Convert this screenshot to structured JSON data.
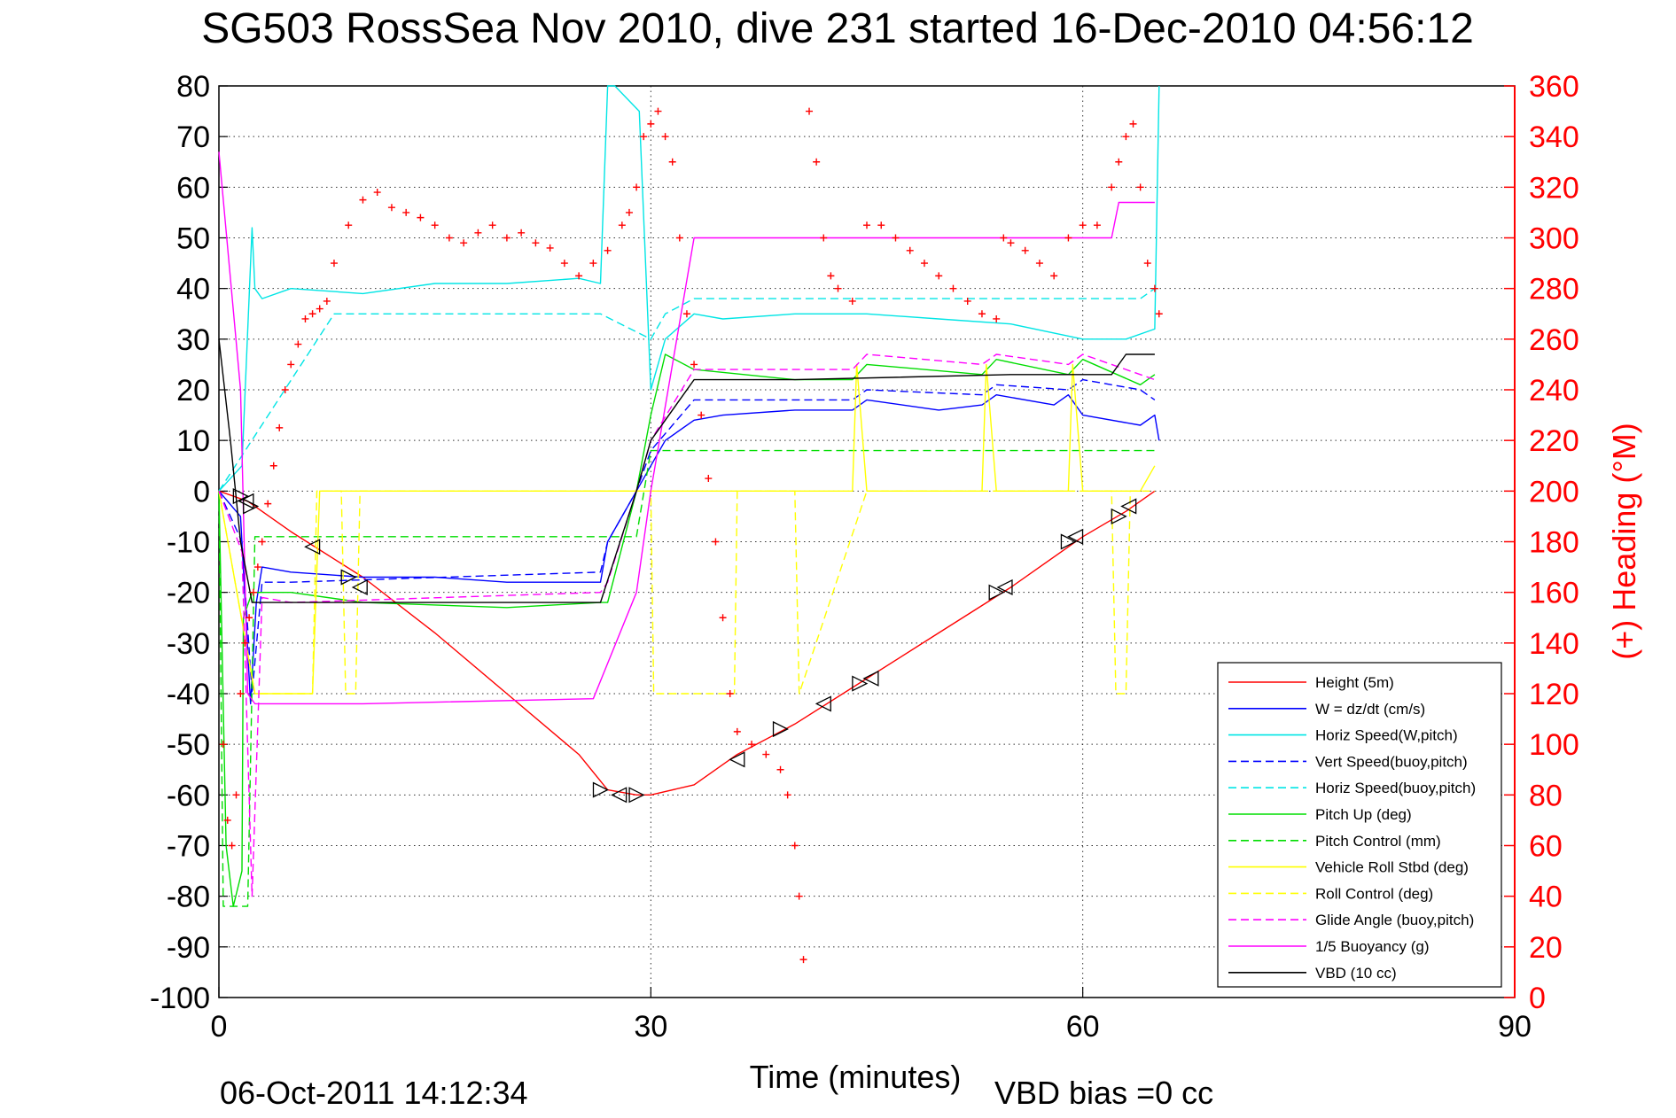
{
  "chart_data": {
    "type": "line",
    "title": "SG503 RossSea Nov 2010, dive 231 started 16-Dec-2010 04:56:12",
    "xlabel": "Time (minutes)",
    "ylabel": "",
    "y2label": "(+) Heading (°M)",
    "xlim": [
      0,
      90
    ],
    "ylim": [
      -100,
      80
    ],
    "y2lim": [
      0,
      360
    ],
    "x_ticks": [
      "0",
      "30",
      "60",
      "90"
    ],
    "y_ticks": [
      "80",
      "70",
      "60",
      "50",
      "40",
      "30",
      "20",
      "10",
      "0",
      "-10",
      "-20",
      "-30",
      "-40",
      "-50",
      "-60",
      "-70",
      "-80",
      "-90",
      "-100"
    ],
    "y2_ticks": [
      "360",
      "340",
      "320",
      "300",
      "280",
      "260",
      "240",
      "220",
      "200",
      "180",
      "160",
      "140",
      "120",
      "100",
      "80",
      "60",
      "40",
      "20",
      "0"
    ],
    "grid": true,
    "legend_position": "bottom-right",
    "footer_left": "06-Oct-2011 14:12:34",
    "footer_right": "VBD bias =0 cc",
    "series": [
      {
        "name": "Height (5m)",
        "color": "#ff0000",
        "dash": "solid",
        "x": [
          0,
          2,
          5,
          10,
          15,
          20,
          25,
          27,
          29,
          30,
          33,
          36,
          40,
          45,
          50,
          55,
          60,
          63,
          65
        ],
        "y": [
          0,
          -2,
          -8,
          -17,
          -28,
          -40,
          -52,
          -59,
          -60,
          -60,
          -58,
          -52,
          -46,
          -37,
          -28,
          -19,
          -9,
          -4,
          0
        ]
      },
      {
        "name": "W = dz/dt (cm/s)",
        "color": "#0000ff",
        "dash": "solid",
        "x": [
          0,
          1.5,
          2.2,
          2.6,
          3,
          5,
          10,
          15,
          20,
          26.5,
          27,
          29,
          30,
          31,
          33,
          35,
          40,
          44,
          45,
          50,
          53,
          54,
          58,
          59,
          60,
          64,
          65,
          65.3
        ],
        "y": [
          0,
          -5,
          -42,
          -22,
          -15,
          -16,
          -17,
          -17,
          -18,
          -18,
          -10,
          0,
          5,
          10,
          14,
          15,
          16,
          16,
          18,
          16,
          17,
          19,
          17,
          19,
          15,
          13,
          15,
          10
        ]
      },
      {
        "name": "Horiz Speed(W,pitch)",
        "color": "#00e5e5",
        "dash": "solid",
        "x": [
          0,
          1.6,
          2.3,
          2.5,
          3,
          5,
          10,
          15,
          20,
          25,
          26.5,
          27,
          27.5,
          29.2,
          30,
          31,
          33,
          35,
          40,
          45,
          50,
          55,
          60,
          63,
          65,
          65.3
        ],
        "y": [
          0,
          5,
          52,
          40,
          38,
          40,
          39,
          41,
          41,
          42,
          41,
          80,
          80,
          75,
          20,
          30,
          35,
          34,
          35,
          35,
          34,
          33,
          30,
          30,
          32,
          80
        ]
      },
      {
        "name": "Vert Speed(buoy,pitch)",
        "color": "#0000ff",
        "dash": "dashed",
        "x": [
          0,
          1.6,
          2.3,
          3,
          5,
          26.5,
          27,
          29,
          30,
          33,
          40,
          44,
          45,
          53,
          54,
          59,
          60,
          64,
          65
        ],
        "y": [
          0,
          -10,
          -40,
          -18,
          -18,
          -16,
          -10,
          0,
          8,
          18,
          18,
          18,
          20,
          19,
          21,
          20,
          22,
          20,
          18
        ]
      },
      {
        "name": "Horiz Speed(buoy,pitch)",
        "color": "#00e5e5",
        "dash": "dashed",
        "x": [
          0,
          8,
          10,
          26,
          26.5,
          30,
          31,
          33,
          35,
          64,
          65
        ],
        "y": [
          0,
          35,
          35,
          35,
          35,
          30,
          35,
          38,
          38,
          38,
          40
        ]
      },
      {
        "name": "Pitch Up (deg)",
        "color": "#00dd00",
        "dash": "solid",
        "x": [
          0,
          0.5,
          1,
          1.6,
          1.7,
          2.3,
          2.5,
          3,
          5,
          10,
          20,
          26.5,
          27,
          29,
          30,
          31,
          33,
          40,
          44,
          45,
          53,
          54,
          59,
          60,
          64,
          65
        ],
        "y": [
          0,
          -70,
          -82,
          -75,
          -25,
          -20,
          -20,
          -20,
          -20,
          -22,
          -23,
          -22,
          -22,
          0,
          15,
          27,
          24,
          22,
          22,
          25,
          23,
          26,
          23,
          26,
          21,
          23
        ]
      },
      {
        "name": "Pitch Control (mm)",
        "color": "#00dd00",
        "dash": "dashed",
        "x": [
          0,
          0.3,
          2,
          2.5,
          26.5,
          27,
          29,
          30,
          33,
          65
        ],
        "y": [
          0,
          -82,
          -82,
          -9,
          -9,
          -9,
          -9,
          8,
          8,
          8
        ]
      },
      {
        "name": "Vehicle Roll Stbd (deg)",
        "color": "#ffff00",
        "dash": "solid",
        "x": [
          0,
          2.5,
          6.5,
          7,
          28,
          30,
          35,
          40,
          44,
          44.3,
          45,
          53,
          53.3,
          54,
          59,
          59.3,
          60,
          64,
          65
        ],
        "y": [
          0,
          -40,
          -40,
          0,
          0,
          0,
          0,
          0,
          0,
          25,
          0,
          0,
          25,
          0,
          0,
          25,
          0,
          0,
          5
        ]
      },
      {
        "name": "Roll Control (deg)",
        "color": "#ffff00",
        "dash": "dashed",
        "x": [
          0,
          2.5,
          6.5,
          6.8,
          8.5,
          8.8,
          9.5,
          9.8,
          28,
          30,
          30.2,
          35.8,
          36,
          40,
          40.3,
          45,
          53,
          59,
          62,
          62.3,
          63,
          63.3,
          65
        ],
        "y": [
          0,
          -40,
          -40,
          0,
          0,
          -40,
          -40,
          0,
          0,
          0,
          -40,
          -40,
          0,
          0,
          -40,
          0,
          0,
          0,
          0,
          -40,
          -40,
          0,
          0
        ]
      },
      {
        "name": "Glide Angle (buoy,pitch)",
        "color": "#ff00ff",
        "dash": "dashed",
        "x": [
          0,
          1.6,
          2.3,
          3,
          5,
          26.5,
          27,
          29,
          30,
          33,
          40,
          44,
          45,
          53,
          54,
          59,
          60,
          64,
          65
        ],
        "y": [
          0,
          -12,
          -80,
          -21,
          -22,
          -20,
          -18,
          0,
          10,
          24,
          24,
          24,
          27,
          25,
          27,
          25,
          27,
          23,
          22
        ]
      },
      {
        "name": "1/5 Buoyancy (g)",
        "color": "#ff00ff",
        "dash": "solid",
        "x": [
          0,
          1.5,
          2,
          2.5,
          10,
          26,
          29,
          30,
          33,
          40,
          50,
          60,
          61,
          62,
          62.5,
          65
        ],
        "y": [
          67,
          20,
          -40,
          -42,
          -42,
          -41,
          -20,
          0,
          50,
          50,
          50,
          50,
          50,
          50,
          57,
          57
        ]
      },
      {
        "name": "VBD (10 cc)",
        "color": "#000000",
        "dash": "solid",
        "x": [
          0,
          0.8,
          1.5,
          2.3,
          5,
          26.5,
          29,
          30,
          33,
          40,
          55,
          62,
          62.5,
          63,
          65
        ],
        "y": [
          30,
          10,
          -10,
          -22,
          -22,
          -22,
          0,
          10,
          22,
          22,
          23,
          23,
          25,
          27,
          27
        ]
      }
    ],
    "heading_points": {
      "name": "(+) Heading (°M)",
      "color": "#ff0000",
      "marker": "+",
      "x": [
        0.3,
        0.6,
        0.9,
        1.2,
        1.5,
        1.8,
        2.1,
        2.4,
        2.7,
        3.0,
        3.4,
        3.8,
        4.2,
        4.6,
        5.0,
        5.5,
        6.0,
        6.5,
        7.0,
        7.5,
        8,
        9,
        10,
        11,
        12,
        13,
        14,
        15,
        16,
        17,
        18,
        19,
        20,
        21,
        22,
        23,
        24,
        25,
        26,
        27,
        28,
        28.5,
        29,
        29.5,
        30,
        30.5,
        31,
        31.5,
        32,
        32.5,
        33,
        33.5,
        34,
        34.5,
        35,
        35.5,
        36,
        37,
        38,
        39,
        39.5,
        40,
        40.3,
        40.6,
        41,
        41.5,
        42,
        42.5,
        43,
        44,
        45,
        46,
        47,
        48,
        49,
        50,
        51,
        52,
        53,
        54,
        54.5,
        55,
        56,
        57,
        58,
        59,
        60,
        61,
        62,
        62.5,
        63,
        63.5,
        64,
        64.5,
        65,
        65.3
      ],
      "y": [
        100,
        70,
        60,
        80,
        120,
        140,
        150,
        160,
        170,
        180,
        195,
        210,
        225,
        240,
        250,
        258,
        268,
        270,
        272,
        275,
        290,
        305,
        315,
        318,
        312,
        310,
        308,
        305,
        300,
        298,
        302,
        305,
        300,
        302,
        298,
        296,
        290,
        285,
        290,
        295,
        305,
        310,
        320,
        340,
        345,
        350,
        340,
        330,
        300,
        270,
        250,
        230,
        205,
        180,
        150,
        120,
        105,
        100,
        96,
        90,
        80,
        60,
        40,
        15,
        350,
        330,
        300,
        285,
        280,
        275,
        305,
        305,
        300,
        295,
        290,
        285,
        280,
        275,
        270,
        268,
        300,
        298,
        295,
        290,
        285,
        300,
        305,
        305,
        320,
        330,
        340,
        345,
        320,
        290,
        280,
        270
      ]
    },
    "height_markers": {
      "x": [
        1.5,
        1.9,
        2.2,
        6.5,
        9,
        9.8,
        26.5,
        27.8,
        29,
        36,
        39,
        42,
        44.5,
        45.3,
        54,
        54.6,
        59,
        59.5,
        62.5,
        63.2
      ],
      "y": [
        -1,
        -2,
        -3,
        -11,
        -17,
        -19,
        -59,
        -60,
        -60,
        -53,
        -47,
        -42,
        -38,
        -37,
        -20,
        -19,
        -10,
        -9,
        -5,
        -3
      ]
    }
  }
}
